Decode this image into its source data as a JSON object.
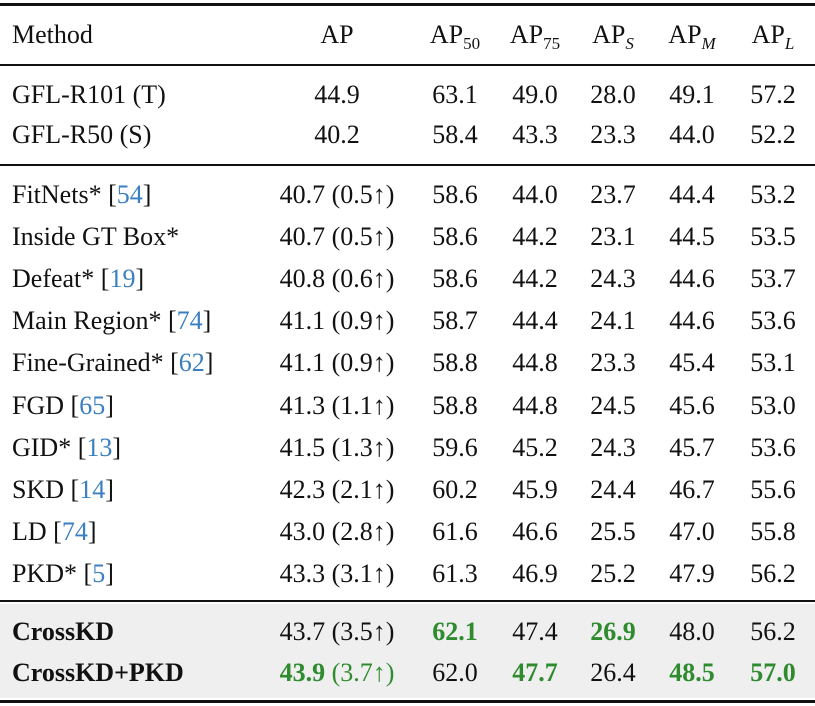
{
  "table": {
    "header": [
      {
        "text": "Method"
      },
      {
        "text": "AP"
      },
      {
        "text": "AP",
        "sub": "50"
      },
      {
        "text": "AP",
        "sub": "75"
      },
      {
        "text": "AP",
        "sub": "S",
        "italic": true
      },
      {
        "text": "AP",
        "sub": "M",
        "italic": true
      },
      {
        "text": "AP",
        "sub": "L",
        "italic": true
      }
    ],
    "groups": [
      {
        "rows": [
          {
            "method": "GFL-R101 (T)",
            "ap": {
              "value": "44.9"
            },
            "cells": [
              "63.1",
              "49.0",
              "28.0",
              "49.1",
              "57.2"
            ]
          },
          {
            "method": "GFL-R50 (S)",
            "ap": {
              "value": "40.2"
            },
            "cells": [
              "58.4",
              "43.3",
              "23.3",
              "44.0",
              "52.2"
            ]
          }
        ]
      },
      {
        "rows": [
          {
            "method": "FitNets*",
            "ref": [
              "[",
              "54",
              "]"
            ],
            "ap": {
              "value": "40.7",
              "delta": "(0.5↑)"
            },
            "cells": [
              "58.6",
              "44.0",
              "23.7",
              "44.4",
              "53.2"
            ]
          },
          {
            "method": "Inside GT Box*",
            "ap": {
              "value": "40.7",
              "delta": "(0.5↑)"
            },
            "cells": [
              "58.6",
              "44.2",
              "23.1",
              "44.5",
              "53.5"
            ]
          },
          {
            "method": "Defeat*",
            "ref": [
              "[",
              "19",
              "]"
            ],
            "ap": {
              "value": "40.8",
              "delta": "(0.6↑)"
            },
            "cells": [
              "58.6",
              "44.2",
              "24.3",
              "44.6",
              "53.7"
            ]
          },
          {
            "method": "Main Region*",
            "ref": [
              "[",
              "74",
              "]"
            ],
            "ap": {
              "value": "41.1",
              "delta": "(0.9↑)"
            },
            "cells": [
              "58.7",
              "44.4",
              "24.1",
              "44.6",
              "53.6"
            ]
          },
          {
            "method": "Fine-Grained*",
            "ref": [
              "[",
              "62",
              "]"
            ],
            "ap": {
              "value": "41.1",
              "delta": "(0.9↑)"
            },
            "cells": [
              "58.8",
              "44.8",
              "23.3",
              "45.4",
              "53.1"
            ]
          },
          {
            "method": "FGD",
            "ref": [
              "[",
              "65",
              "]"
            ],
            "ap": {
              "value": "41.3",
              "delta": "(1.1↑)"
            },
            "cells": [
              "58.8",
              "44.8",
              "24.5",
              "45.6",
              "53.0"
            ]
          },
          {
            "method": "GID*",
            "ref": [
              "[",
              "13",
              "]"
            ],
            "ap": {
              "value": "41.5",
              "delta": "(1.3↑)"
            },
            "cells": [
              "59.6",
              "45.2",
              "24.3",
              "45.7",
              "53.6"
            ]
          },
          {
            "method": "SKD",
            "ref": [
              "[",
              "14",
              "]"
            ],
            "ap": {
              "value": "42.3",
              "delta": "(2.1↑)"
            },
            "cells": [
              "60.2",
              "45.9",
              "24.4",
              "46.7",
              "55.6"
            ]
          },
          {
            "method": "LD",
            "ref": [
              "[",
              "74",
              "]"
            ],
            "ap": {
              "value": "43.0",
              "delta": "(2.8↑)"
            },
            "cells": [
              "61.6",
              "46.6",
              "25.5",
              "47.0",
              "55.8"
            ]
          },
          {
            "method": "PKD*",
            "ref": [
              "[",
              "5",
              "]"
            ],
            "ap": {
              "value": "43.3",
              "delta": "(3.1↑)"
            },
            "cells": [
              "61.3",
              "46.9",
              "25.2",
              "47.9",
              "56.2"
            ]
          }
        ]
      },
      {
        "shaded": true,
        "rows": [
          {
            "method": "CrossKD",
            "bold_method": true,
            "ap": {
              "value": "43.7",
              "delta": "(3.5↑)"
            },
            "cells": [
              "62.1",
              "47.4",
              "26.9",
              "48.0",
              "56.2"
            ],
            "highlight": [
              0,
              2
            ]
          },
          {
            "method": "CrossKD+PKD",
            "bold_method": true,
            "ap": {
              "value": "43.9",
              "delta": "(3.7↑)"
            },
            "ap_highlight": true,
            "cells": [
              "62.0",
              "47.7",
              "26.4",
              "48.5",
              "57.0"
            ],
            "highlight": [
              1,
              3,
              4
            ]
          }
        ]
      }
    ],
    "highlight_color": "#2e8b2e"
  }
}
